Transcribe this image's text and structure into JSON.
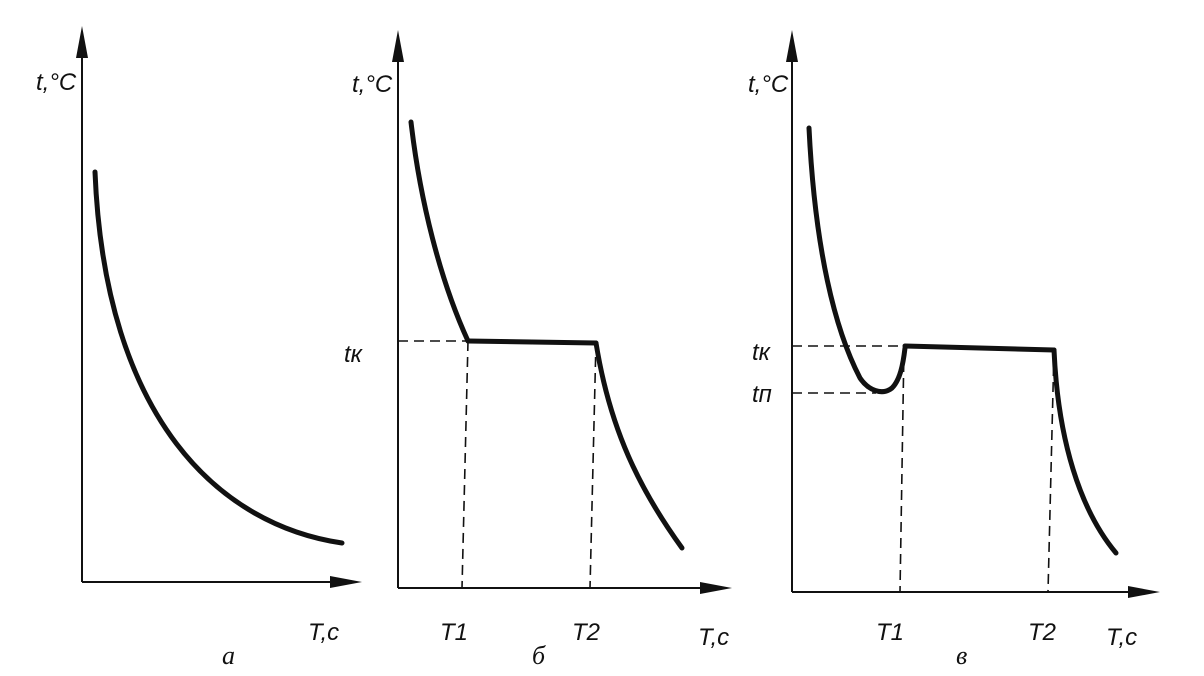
{
  "panels": [
    {
      "panel_label": "а",
      "y_axis_label": "t,°C",
      "x_axis_label": "T,c"
    },
    {
      "panel_label": "б",
      "y_axis_label": "t,°C",
      "x_axis_label": "T,c",
      "y_tick_labels": [
        "tк"
      ],
      "x_tick_labels": [
        "T1",
        "T2"
      ]
    },
    {
      "panel_label": "в",
      "y_axis_label": "t,°C",
      "x_axis_label": "T,c",
      "y_tick_labels": [
        "tк",
        "tп"
      ],
      "x_tick_labels": [
        "T1",
        "T2"
      ]
    }
  ]
}
